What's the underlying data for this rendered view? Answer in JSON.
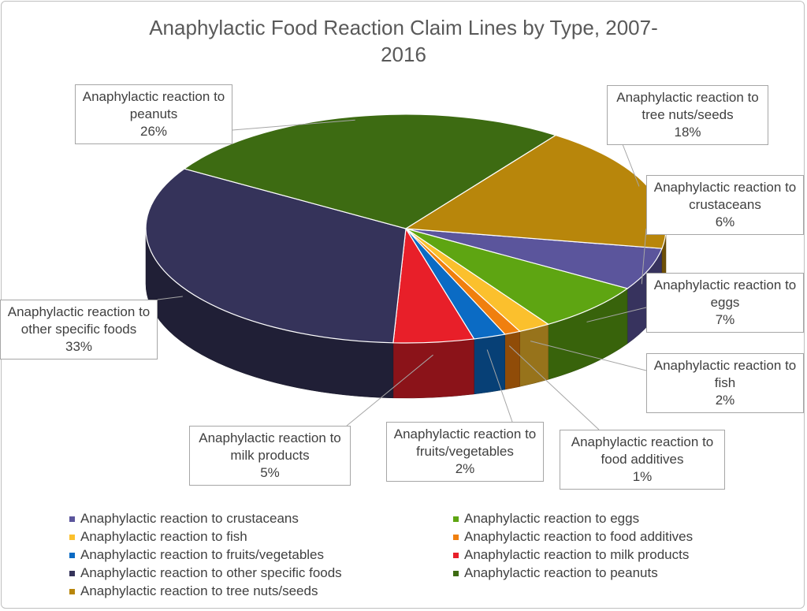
{
  "chart_data": {
    "type": "pie3d",
    "title": "Anaphylactic Food Reaction Claim Lines by Type, 2007-2016",
    "categories": [
      "Anaphylactic reaction to crustaceans",
      "Anaphylactic reaction to eggs",
      "Anaphylactic reaction to fish",
      "Anaphylactic reaction to food additives",
      "Anaphylactic reaction to fruits/vegetables",
      "Anaphylactic reaction to milk products",
      "Anaphylactic reaction to other specific foods",
      "Anaphylactic reaction to peanuts",
      "Anaphylactic reaction to tree nuts/seeds"
    ],
    "values": [
      6,
      7,
      2,
      1,
      2,
      5,
      33,
      26,
      18
    ],
    "value_labels": [
      "6%",
      "7%",
      "2%",
      "1%",
      "2%",
      "5%",
      "33%",
      "26%",
      "18%"
    ],
    "colors": [
      "#5b559c",
      "#5ea512",
      "#fbc02d",
      "#f07f0e",
      "#0b6bc4",
      "#e81f29",
      "#35335a",
      "#3d6b12",
      "#b8860b"
    ],
    "legend": "bottom"
  }
}
